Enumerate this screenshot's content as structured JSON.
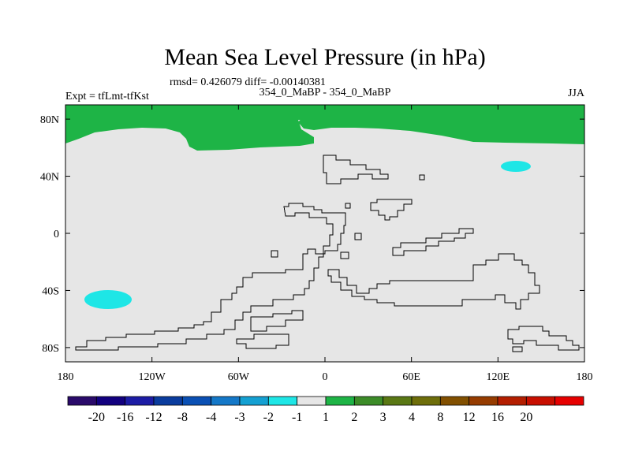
{
  "chart_data": {
    "type": "heatmap",
    "title": "Mean Sea Level Pressure (in hPa)",
    "stats_line": "rmsd= 0.426079 diff= -0.00140381",
    "left_label": "Expt = tfLmt-tfKst",
    "center_label": "354_0_MaBP - 354_0_MaBP",
    "right_label": "JJA",
    "x_axis": {
      "range": [
        -180,
        180
      ],
      "ticks": [
        {
          "value": -180,
          "label": "180"
        },
        {
          "value": -120,
          "label": "120W"
        },
        {
          "value": -60,
          "label": "60W"
        },
        {
          "value": 0,
          "label": "0"
        },
        {
          "value": 60,
          "label": "60E"
        },
        {
          "value": 120,
          "label": "120E"
        },
        {
          "value": 180,
          "label": "180"
        }
      ]
    },
    "y_axis": {
      "range": [
        -90,
        90
      ],
      "ticks": [
        {
          "value": 80,
          "label": "80N"
        },
        {
          "value": 40,
          "label": "40N"
        },
        {
          "value": 0,
          "label": "0"
        },
        {
          "value": -40,
          "label": "40S"
        },
        {
          "value": -80,
          "label": "80S"
        }
      ]
    },
    "background_level": "-1 to 1",
    "regions": [
      {
        "name": "northern-high-latitude-positive",
        "level": "1 to 2",
        "approx_lat_range": [
          64,
          90
        ],
        "approx_lon_range": [
          -180,
          180
        ]
      },
      {
        "name": "north-pacific-negative-patch",
        "level": "-2 to -1",
        "approx_center": [
          133,
          46
        ]
      },
      {
        "name": "south-pacific-negative-patch",
        "level": "-2 to -1",
        "approx_center": [
          -158,
          -46
        ]
      }
    ],
    "colorbar": {
      "colors": [
        "#2a0a6a",
        "#12007f",
        "#1c1ca5",
        "#0a3c9e",
        "#0a50b4",
        "#1478c8",
        "#14a0d2",
        "#1ee6e6",
        "#e6e6e6",
        "#1eb446",
        "#3c8c28",
        "#5a7814",
        "#6e6e0a",
        "#825000",
        "#963c00",
        "#b41e00",
        "#c80f00",
        "#e60000"
      ],
      "labels": [
        "-20",
        "-16",
        "-12",
        "-8",
        "-4",
        "-3",
        "-2",
        "-1",
        "1",
        "2",
        "3",
        "4",
        "8",
        "12",
        "16",
        "20"
      ]
    }
  }
}
